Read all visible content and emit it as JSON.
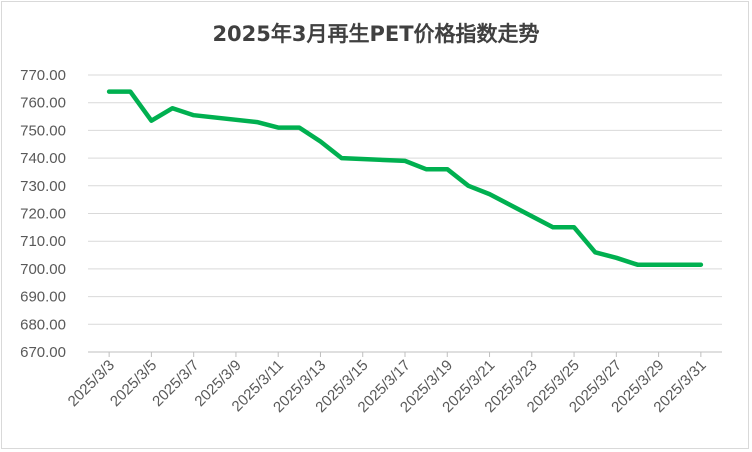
{
  "chart_data": {
    "type": "line",
    "title": "2025年3月再生PET价格指数走势",
    "xlabel": "",
    "ylabel": "",
    "ylim": [
      670,
      770
    ],
    "y_ticks": [
      "670.00",
      "680.00",
      "690.00",
      "700.00",
      "710.00",
      "720.00",
      "730.00",
      "740.00",
      "750.00",
      "760.00",
      "770.00"
    ],
    "x_tick_labels": [
      "2025/3/3",
      "2025/3/5",
      "2025/3/7",
      "2025/3/9",
      "2025/3/11",
      "2025/3/13",
      "2025/3/15",
      "2025/3/17",
      "2025/3/19",
      "2025/3/21",
      "2025/3/23",
      "2025/3/25",
      "2025/3/27",
      "2025/3/29",
      "2025/3/31"
    ],
    "grid": true,
    "legend": "none",
    "series": [
      {
        "color": "#00b050",
        "x": [
          "2025/3/3",
          "2025/3/4",
          "2025/3/5",
          "2025/3/6",
          "2025/3/7",
          "2025/3/10",
          "2025/3/11",
          "2025/3/12",
          "2025/3/13",
          "2025/3/14",
          "2025/3/17",
          "2025/3/18",
          "2025/3/19",
          "2025/3/20",
          "2025/3/21",
          "2025/3/24",
          "2025/3/25",
          "2025/3/26",
          "2025/3/27",
          "2025/3/28",
          "2025/3/31"
        ],
        "values": [
          764,
          764,
          753.5,
          758,
          755.5,
          753,
          751,
          751,
          746,
          740,
          739,
          736,
          736,
          730,
          727,
          715,
          715,
          706,
          704,
          701.5,
          701.5
        ]
      }
    ]
  }
}
